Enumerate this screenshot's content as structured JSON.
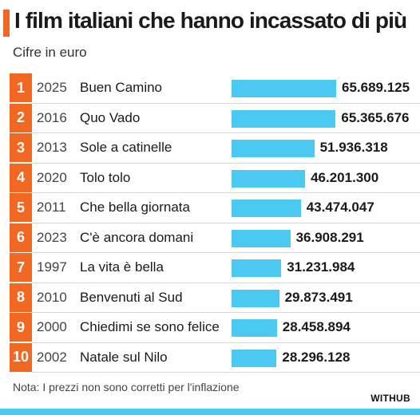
{
  "colors": {
    "accent": "#f26722",
    "bar": "#4cc9f0",
    "strip": "#4cc9f0"
  },
  "header": {
    "title": "I film italiani che hanno incassato di più",
    "subtitle": "Cifre in euro"
  },
  "footer": {
    "note": "Nota: I prezzi non sono corretti per l'inflazione",
    "brand": "WITHUB"
  },
  "chart_data": {
    "type": "bar",
    "orientation": "horizontal",
    "title": "I film italiani che hanno incassato di più",
    "subtitle": "Cifre in euro",
    "rows": [
      {
        "rank": "1",
        "year": "2025",
        "film": "Buen Camino",
        "value": 65689125,
        "label": "65.689.125"
      },
      {
        "rank": "2",
        "year": "2016",
        "film": "Quo Vado",
        "value": 65365676,
        "label": "65.365.676"
      },
      {
        "rank": "3",
        "year": "2013",
        "film": "Sole a catinelle",
        "value": 51936318,
        "label": "51.936.318"
      },
      {
        "rank": "4",
        "year": "2020",
        "film": "Tolo tolo",
        "value": 46201300,
        "label": "46.201.300"
      },
      {
        "rank": "5",
        "year": "2011",
        "film": "Che bella giornata",
        "value": 43474047,
        "label": "43.474.047"
      },
      {
        "rank": "6",
        "year": "2023",
        "film": "C'è ancora domani",
        "value": 36908291,
        "label": "36.908.291"
      },
      {
        "rank": "7",
        "year": "1997",
        "film": "La vita è bella",
        "value": 31231984,
        "label": "31.231.984"
      },
      {
        "rank": "8",
        "year": "2010",
        "film": "Benvenuti al Sud",
        "value": 29873491,
        "label": "29.873.491"
      },
      {
        "rank": "9",
        "year": "2000",
        "film": "Chiedimi se sono felice",
        "value": 28458894,
        "label": "28.458.894"
      },
      {
        "rank": "10",
        "year": "2002",
        "film": "Natale sul Nilo",
        "value": 28296128,
        "label": "28.296.128"
      }
    ]
  }
}
